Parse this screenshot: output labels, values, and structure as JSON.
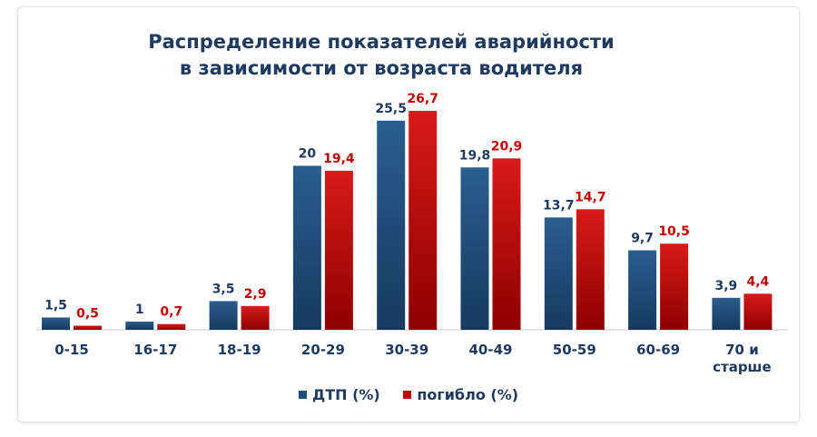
{
  "chart_data": {
    "type": "bar",
    "title_line1": "Распределение показателей аварийности",
    "title_line2": "в зависимости от возраста водителя",
    "categories": [
      "0-15",
      "16-17",
      "18-19",
      "20-29",
      "30-39",
      "40-49",
      "50-59",
      "60-69",
      "70 и\nстарше"
    ],
    "series": [
      {
        "name": "ДТП (%)",
        "color": "#1f4e79",
        "label_color": "#1f3a5f",
        "values": [
          1.5,
          1,
          3.5,
          20,
          25.5,
          19.8,
          13.7,
          9.7,
          3.9
        ],
        "labels": [
          "1,5",
          "1",
          "3,5",
          "20",
          "25,5",
          "19,8",
          "13,7",
          "9,7",
          "3,9"
        ]
      },
      {
        "name": "погибло (%)",
        "color": "#c00000",
        "label_color": "#c00000",
        "values": [
          0.5,
          0.7,
          2.9,
          19.4,
          26.7,
          20.9,
          14.7,
          10.5,
          4.4
        ],
        "labels": [
          "0,5",
          "0,7",
          "2,9",
          "19,4",
          "26,7",
          "20,9",
          "14,7",
          "10,5",
          "4,4"
        ]
      }
    ],
    "ylim": [
      0,
      26.7
    ],
    "grid": false,
    "legend_position": "bottom"
  }
}
